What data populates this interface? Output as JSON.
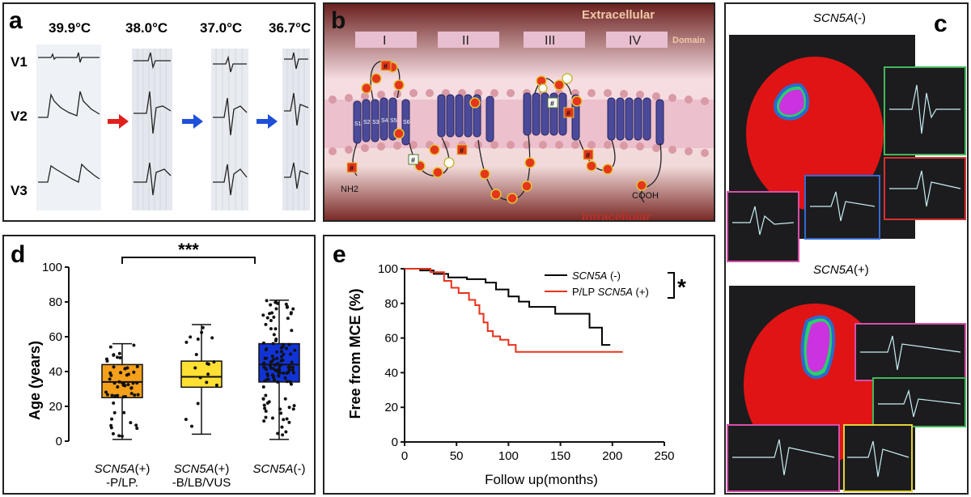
{
  "panel_a": {
    "label": "a",
    "temps": [
      "39.9°C",
      "38.0°C",
      "37.0°C",
      "36.7°C"
    ],
    "leads": [
      "V1",
      "V2",
      "V3"
    ]
  },
  "panel_b": {
    "label": "b",
    "extracellular": "Extracellular",
    "intracellular": "Intracellular",
    "domain": "Domain",
    "domains": [
      "I",
      "II",
      "III",
      "IV"
    ],
    "segments": [
      "S1",
      "S2",
      "S3",
      "S4",
      "S5",
      "S6"
    ],
    "nh2": "NH2",
    "cooh": "COOH",
    "hash": "#"
  },
  "panel_c": {
    "label": "c",
    "top_title": {
      "gene": "SCN5A",
      "suffix": "(-)"
    },
    "bottom_title": {
      "gene": "SCN5A",
      "suffix": "(+)"
    }
  },
  "panel_d": {
    "label": "d",
    "significance": "***",
    "ylabel": "Age (years)",
    "yticks": [
      "0",
      "20",
      "40",
      "60",
      "80",
      "100"
    ],
    "groups": [
      {
        "line1": "SCN5A",
        "line1_suffix": "(+)",
        "line2": "-P/LP.",
        "color": "#f5a01a"
      },
      {
        "line1": "SCN5A",
        "line1_suffix": "(+)",
        "line2": "-B/LB/VUS",
        "color": "#ffe033"
      },
      {
        "line1": "SCN5A",
        "line1_suffix": "(-)",
        "line2": "",
        "color": "#1133d6"
      }
    ],
    "chart_data": {
      "type": "box",
      "ylabel": "Age (years)",
      "ylim": [
        0,
        100
      ],
      "categories": [
        "SCN5A(+) -P/LP.",
        "SCN5A(+) -B/LB/VUS",
        "SCN5A(-)"
      ],
      "boxes": [
        {
          "min": 1,
          "q1": 25,
          "median": 34,
          "q3": 44,
          "max": 56
        },
        {
          "min": 4,
          "q1": 31,
          "median": 37,
          "q3": 46,
          "max": 67
        },
        {
          "min": 1,
          "q1": 34,
          "median": 44,
          "q3": 56,
          "max": 81
        }
      ]
    }
  },
  "panel_e": {
    "label": "e",
    "ylabel": "Free from MCE (%)",
    "xlabel": "Follow up(months)",
    "xticks": [
      "0",
      "50",
      "100",
      "150",
      "200",
      "250"
    ],
    "yticks": [
      "0",
      "20",
      "40",
      "60",
      "80",
      "100"
    ],
    "legend": [
      {
        "prefix": "",
        "gene": "SCN5A",
        "suffix": " (-)",
        "color": "#000000"
      },
      {
        "prefix": "P/LP ",
        "gene": "SCN5A",
        "suffix": " (+)",
        "color": "#e8321c"
      }
    ],
    "star": "*",
    "chart_data": {
      "type": "line",
      "xlabel": "Follow up(months)",
      "ylabel": "Free from MCE (%)",
      "xlim": [
        0,
        250
      ],
      "ylim": [
        0,
        100
      ],
      "series": [
        {
          "name": "SCN5A (-)",
          "color": "#000000",
          "x": [
            0,
            15,
            28,
            42,
            60,
            78,
            88,
            100,
            110,
            120,
            145,
            178,
            190,
            198
          ],
          "y": [
            100,
            99,
            97,
            95,
            94,
            92,
            88,
            84,
            81,
            78,
            74,
            66,
            56,
            56
          ]
        },
        {
          "name": "P/LP SCN5A (+)",
          "color": "#e8321c",
          "x": [
            0,
            25,
            38,
            45,
            52,
            62,
            68,
            72,
            76,
            80,
            85,
            92,
            100,
            107,
            130,
            210
          ],
          "y": [
            100,
            98,
            93,
            89,
            86,
            82,
            79,
            74,
            69,
            64,
            61,
            59,
            56,
            52,
            52,
            52
          ]
        }
      ]
    }
  }
}
